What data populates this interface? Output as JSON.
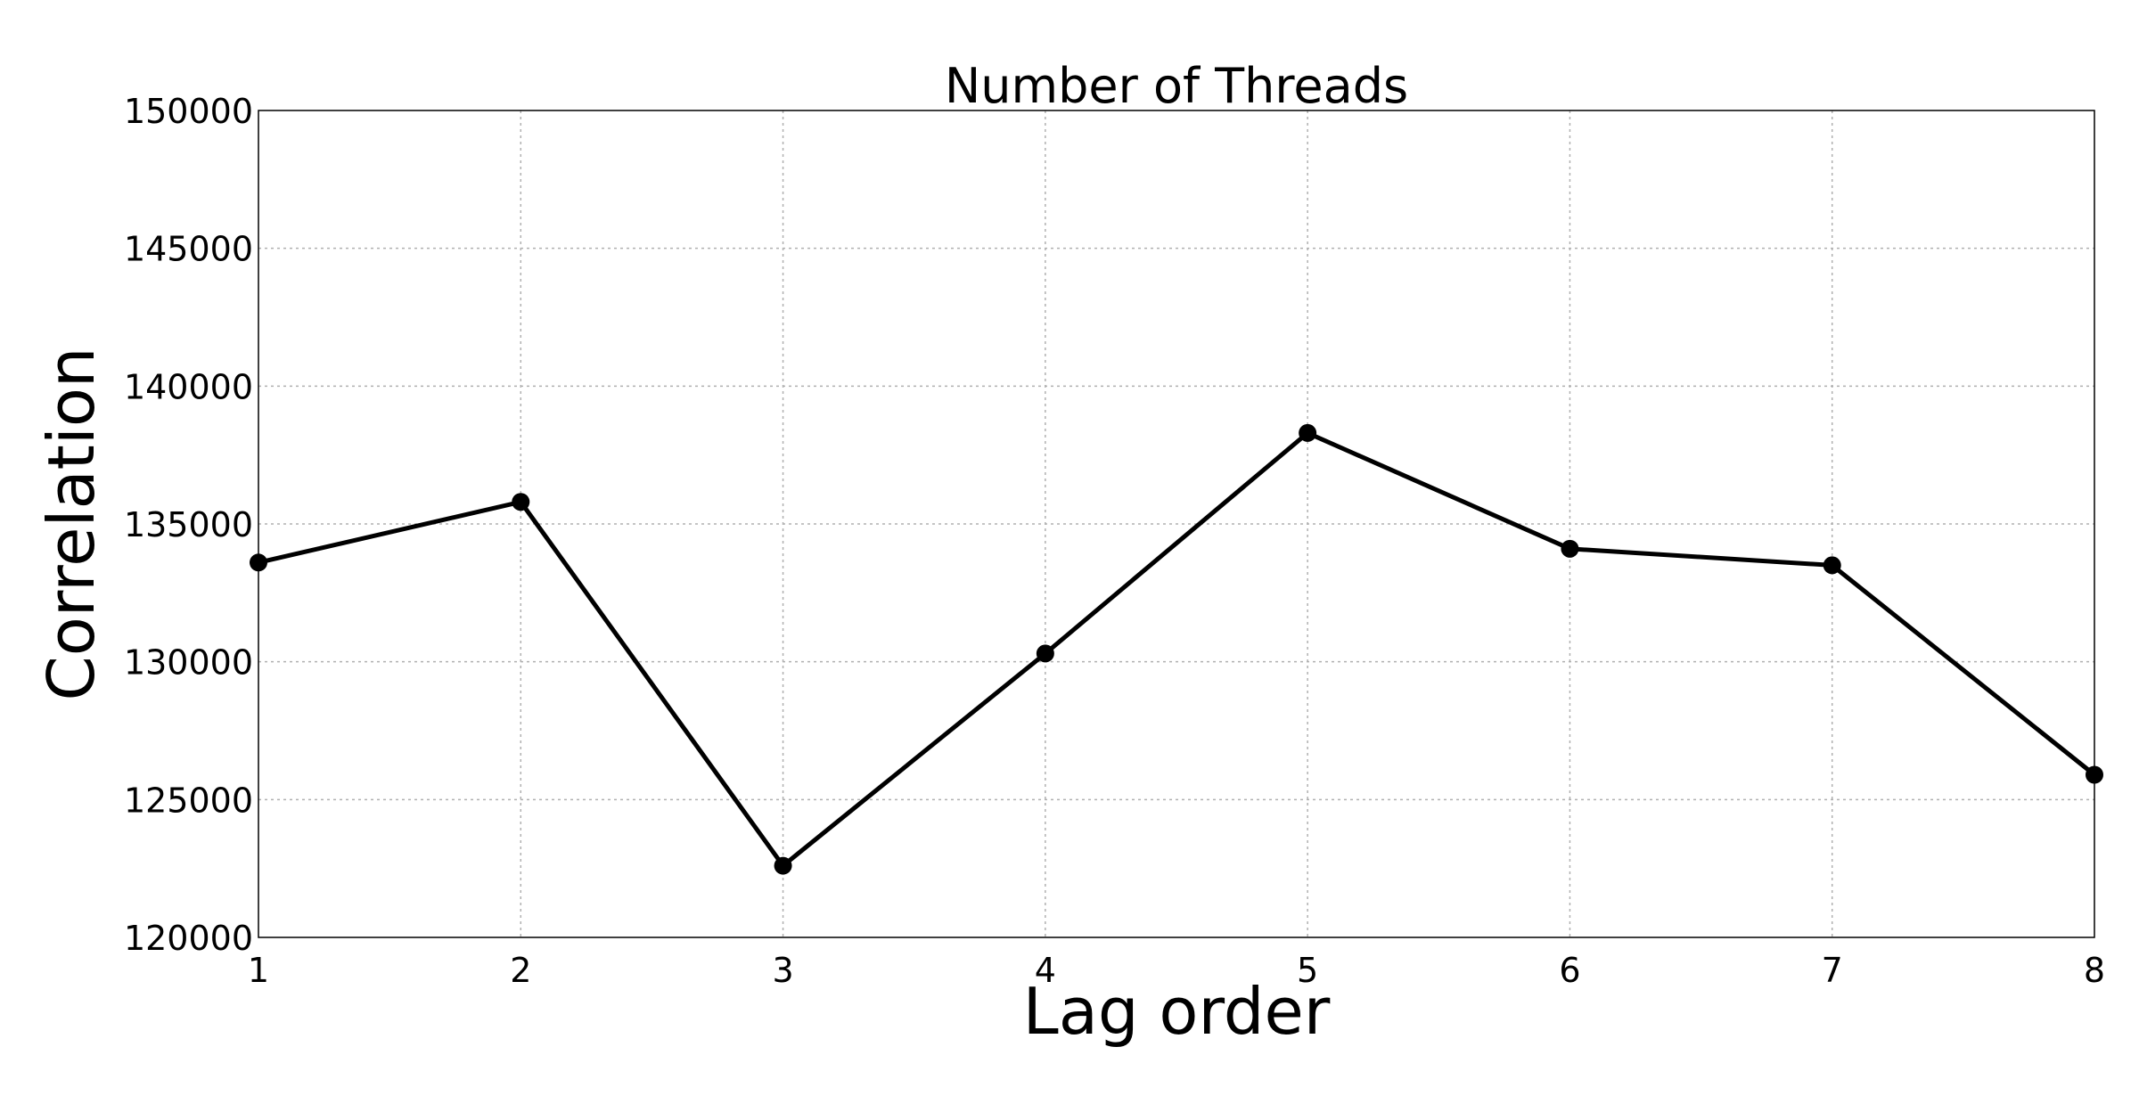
{
  "chart_data": {
    "type": "line",
    "title": "Number of Threads",
    "xlabel": "Lag order",
    "ylabel": "Correlation",
    "x": [
      1,
      2,
      3,
      4,
      5,
      6,
      7,
      8
    ],
    "series": [
      {
        "values": [
          133600,
          135800,
          122600,
          130300,
          138300,
          134100,
          133500,
          125900
        ],
        "color": "#000000",
        "marker": "circle"
      }
    ],
    "xlim": [
      1,
      8
    ],
    "ylim": [
      120000,
      150000
    ],
    "xticks": [
      1,
      2,
      3,
      4,
      5,
      6,
      7,
      8
    ],
    "yticks": [
      120000,
      125000,
      130000,
      135000,
      140000,
      145000,
      150000
    ],
    "xtick_labels": [
      "1",
      "2",
      "3",
      "4",
      "5",
      "6",
      "7",
      "8"
    ],
    "ytick_labels": [
      "120000",
      "125000",
      "130000",
      "135000",
      "140000",
      "145000",
      "150000"
    ],
    "grid": true
  }
}
